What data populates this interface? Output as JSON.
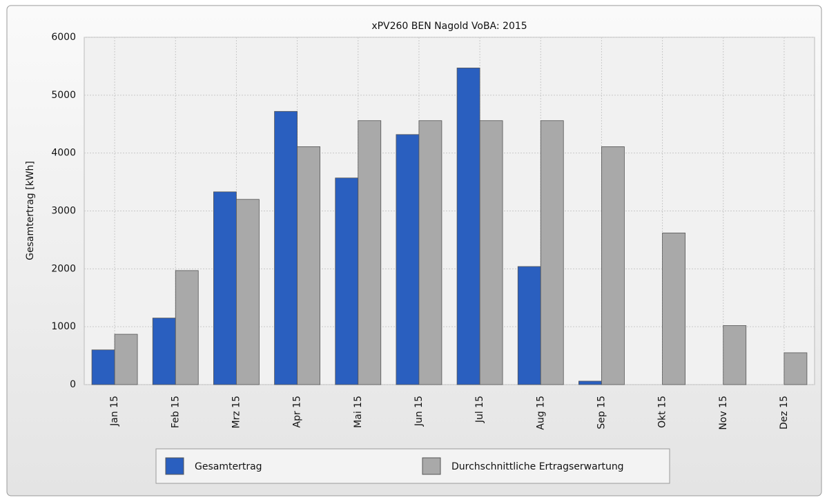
{
  "chart_data": {
    "type": "bar",
    "title": "xPV260 BEN Nagold VoBA: 2015",
    "y_label": "Gesamtertrag [kWh]",
    "categories": [
      "Jan 15",
      "Feb 15",
      "Mrz 15",
      "Apr 15",
      "Mai 15",
      "Jun 15",
      "Jul 15",
      "Aug 15",
      "Sep 15",
      "Okt 15",
      "Nov 15",
      "Dez 15"
    ],
    "series": [
      {
        "name": "Gesamtertrag",
        "color": "#2a5fbf",
        "values": [
          600,
          1150,
          3330,
          4720,
          3570,
          4320,
          5470,
          2040,
          60,
          0,
          0,
          0
        ]
      },
      {
        "name": "Durchschnittliche Ertragserwartung",
        "color": "#a9a9a9",
        "values": [
          870,
          1970,
          3200,
          4110,
          4560,
          4560,
          4560,
          4560,
          4110,
          2620,
          1020,
          550
        ]
      }
    ],
    "ylim": [
      0,
      6000
    ],
    "yticks": [
      0,
      1000,
      2000,
      3000,
      4000,
      5000,
      6000
    ],
    "grid": true,
    "legend": "bottom"
  }
}
